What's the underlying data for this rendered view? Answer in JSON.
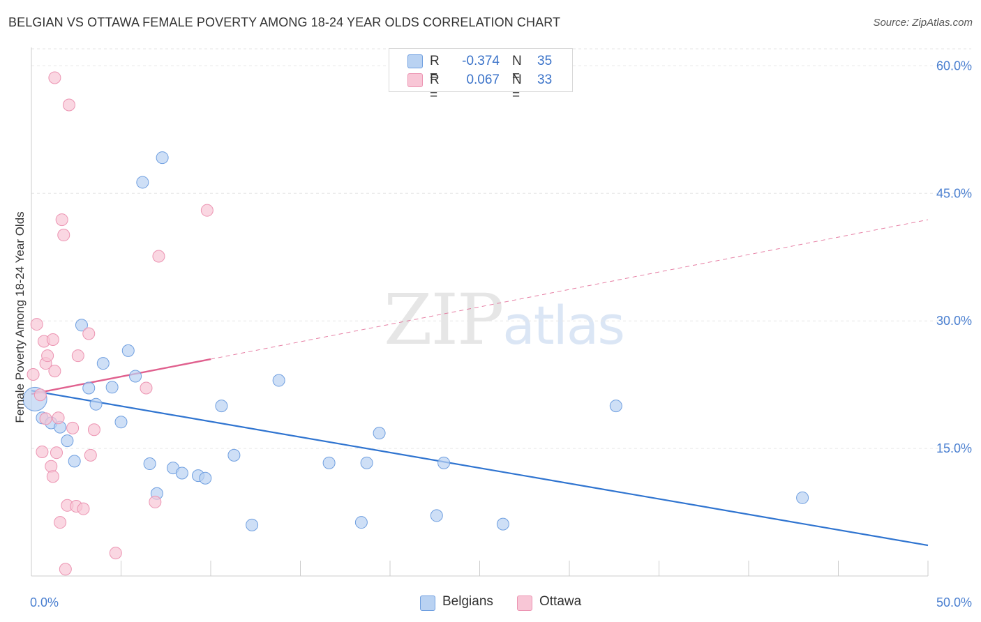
{
  "title": "BELGIAN VS OTTAWA FEMALE POVERTY AMONG 18-24 YEAR OLDS CORRELATION CHART",
  "source": "Source: ZipAtlas.com",
  "watermark": {
    "zip": "ZIP",
    "atlas": "atlas"
  },
  "colors": {
    "belgians_fill": "#b9d2f2",
    "belgians_stroke": "#6f9fe0",
    "belgians_line": "#2f74d0",
    "ottawa_fill": "#f8c6d6",
    "ottawa_stroke": "#ec94b2",
    "ottawa_line": "#e0608e",
    "tick_text": "#4a7fd0",
    "grid": "#e6e6e6"
  },
  "legend": {
    "rows": [
      {
        "r_label": "R =",
        "r_value": "-0.374",
        "n_label": "N =",
        "n_value": "35"
      },
      {
        "r_label": "R =",
        "r_value": "0.067",
        "n_label": "N =",
        "n_value": "33"
      }
    ]
  },
  "bottom_legend": {
    "belgians": "Belgians",
    "ottawa": "Ottawa"
  },
  "chart_data": {
    "type": "scatter",
    "title": "BELGIAN VS OTTAWA FEMALE POVERTY AMONG 18-24 YEAR OLDS CORRELATION CHART",
    "xlabel": "",
    "ylabel": "Female Poverty Among 18-24 Year Olds",
    "xlim": [
      0,
      50
    ],
    "ylim": [
      0,
      62
    ],
    "x_tick_labels": [
      "0.0%",
      "50.0%"
    ],
    "y_ticks": [
      {
        "value": 15,
        "label": "15.0%"
      },
      {
        "value": 30,
        "label": "30.0%"
      },
      {
        "value": 45,
        "label": "45.0%"
      },
      {
        "value": 60,
        "label": "60.0%"
      }
    ],
    "x_minor_ticks": [
      0,
      5,
      10,
      15,
      20,
      25,
      30,
      35,
      40,
      45,
      50
    ],
    "grid": true,
    "legend_position": "top-center",
    "series": [
      {
        "name": "Belgians",
        "r": -0.374,
        "n": 35,
        "points": [
          [
            0.2,
            20.8
          ],
          [
            0.6,
            18.6
          ],
          [
            1.1,
            18.0
          ],
          [
            1.6,
            17.5
          ],
          [
            2.0,
            15.9
          ],
          [
            2.4,
            13.5
          ],
          [
            2.8,
            29.5
          ],
          [
            3.2,
            22.1
          ],
          [
            3.6,
            20.2
          ],
          [
            4.0,
            25.0
          ],
          [
            4.5,
            22.2
          ],
          [
            5.0,
            18.1
          ],
          [
            5.4,
            26.5
          ],
          [
            5.8,
            23.5
          ],
          [
            6.2,
            46.3
          ],
          [
            6.6,
            13.2
          ],
          [
            7.0,
            9.7
          ],
          [
            7.3,
            49.2
          ],
          [
            7.9,
            12.7
          ],
          [
            8.4,
            12.1
          ],
          [
            9.3,
            11.8
          ],
          [
            9.7,
            11.5
          ],
          [
            10.6,
            20.0
          ],
          [
            11.3,
            14.2
          ],
          [
            12.3,
            6.0
          ],
          [
            13.8,
            23.0
          ],
          [
            16.6,
            13.3
          ],
          [
            18.4,
            6.3
          ],
          [
            18.7,
            13.3
          ],
          [
            19.4,
            16.8
          ],
          [
            22.6,
            7.1
          ],
          [
            23.0,
            13.3
          ],
          [
            26.3,
            6.1
          ],
          [
            32.6,
            20.0
          ],
          [
            43.0,
            9.2
          ]
        ],
        "trend": {
          "x": [
            0,
            50
          ],
          "y": [
            21.8,
            3.6
          ]
        }
      },
      {
        "name": "Ottawa",
        "r": 0.067,
        "n": 33,
        "points": [
          [
            0.1,
            23.7
          ],
          [
            0.3,
            29.6
          ],
          [
            0.5,
            21.3
          ],
          [
            0.6,
            14.6
          ],
          [
            0.7,
            27.6
          ],
          [
            0.8,
            18.5
          ],
          [
            0.8,
            25.0
          ],
          [
            0.9,
            25.9
          ],
          [
            1.1,
            12.9
          ],
          [
            1.2,
            11.7
          ],
          [
            1.2,
            27.8
          ],
          [
            1.3,
            24.1
          ],
          [
            1.3,
            58.6
          ],
          [
            1.4,
            14.5
          ],
          [
            1.5,
            18.6
          ],
          [
            1.6,
            6.3
          ],
          [
            1.7,
            41.9
          ],
          [
            1.8,
            40.1
          ],
          [
            1.9,
            0.8
          ],
          [
            2.0,
            8.3
          ],
          [
            2.1,
            55.4
          ],
          [
            2.3,
            17.4
          ],
          [
            2.5,
            8.2
          ],
          [
            2.6,
            25.9
          ],
          [
            2.9,
            7.9
          ],
          [
            3.2,
            28.5
          ],
          [
            3.3,
            14.2
          ],
          [
            3.5,
            17.2
          ],
          [
            4.7,
            2.7
          ],
          [
            6.4,
            22.1
          ],
          [
            6.9,
            8.7
          ],
          [
            7.1,
            37.6
          ],
          [
            9.8,
            43.0
          ]
        ],
        "trend_solid": {
          "x": [
            0,
            10
          ],
          "y": [
            21.4,
            25.5
          ]
        },
        "trend_dashed": {
          "x": [
            10,
            50
          ],
          "y": [
            25.5,
            41.9
          ]
        }
      }
    ]
  }
}
